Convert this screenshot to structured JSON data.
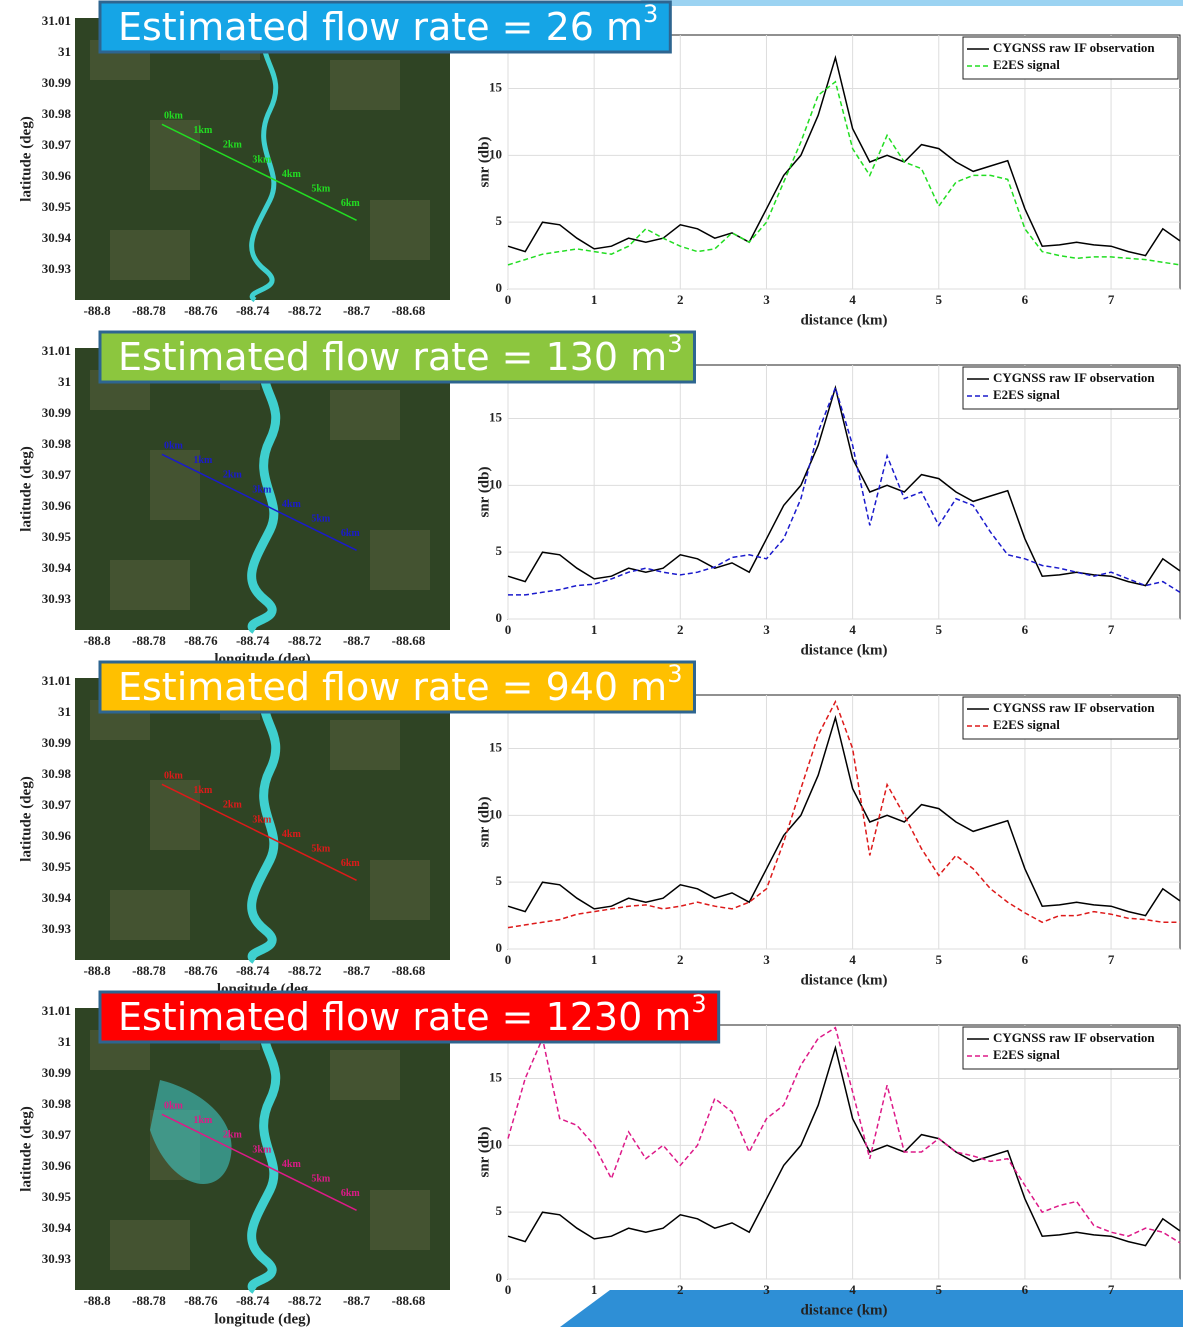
{
  "chart_data": [
    {
      "type": "line",
      "xlabel": "distance (km)",
      "ylabel": "snr (db)",
      "xlim": [
        0,
        7.8
      ],
      "ylim": [
        0,
        19
      ],
      "xticks": [
        0,
        1,
        2,
        3,
        4,
        5,
        6,
        7
      ],
      "yticks": [
        0,
        5,
        10,
        15
      ],
      "grid": true,
      "legend": "upper right",
      "x": [
        0,
        0.2,
        0.4,
        0.6,
        0.8,
        1,
        1.2,
        1.4,
        1.6,
        1.8,
        2,
        2.2,
        2.4,
        2.6,
        2.8,
        3,
        3.2,
        3.4,
        3.6,
        3.8,
        4,
        4.2,
        4.4,
        4.6,
        4.8,
        5,
        5.2,
        5.4,
        5.6,
        5.8,
        6,
        6.2,
        6.4,
        6.6,
        6.8,
        7,
        7.2,
        7.4,
        7.6,
        7.8
      ],
      "series": [
        {
          "name": "CYGNSS raw IF observation",
          "color": "#000000",
          "linestyle": "solid",
          "values": [
            3.2,
            2.8,
            5.0,
            4.8,
            3.8,
            3.0,
            3.2,
            3.8,
            3.5,
            3.8,
            4.8,
            4.5,
            3.8,
            4.2,
            3.5,
            6.0,
            8.5,
            10.0,
            13.0,
            17.3,
            12.0,
            9.5,
            10.0,
            9.5,
            10.8,
            10.5,
            9.5,
            8.8,
            9.2,
            9.6,
            6.0,
            3.2,
            3.3,
            3.5,
            3.3,
            3.2,
            2.8,
            2.5,
            4.5,
            3.6
          ]
        },
        {
          "name": "E2ES signal",
          "color": "#22dd22",
          "linestyle": "dashed",
          "values": [
            1.8,
            2.2,
            2.6,
            2.8,
            3.0,
            2.8,
            2.6,
            3.2,
            4.5,
            3.8,
            3.2,
            2.8,
            3.0,
            4.2,
            3.5,
            5.0,
            8.0,
            11.0,
            14.5,
            15.5,
            10.5,
            8.5,
            11.5,
            9.5,
            9.0,
            6.2,
            8.0,
            8.5,
            8.5,
            8.2,
            4.5,
            2.8,
            2.5,
            2.3,
            2.4,
            2.4,
            2.3,
            2.2,
            2.0,
            1.8
          ]
        }
      ]
    },
    {
      "type": "line",
      "xlabel": "distance (km)",
      "ylabel": "snr (db)",
      "xlim": [
        0,
        7.8
      ],
      "ylim": [
        0,
        19
      ],
      "xticks": [
        0,
        1,
        2,
        3,
        4,
        5,
        6,
        7
      ],
      "yticks": [
        0,
        5,
        10,
        15
      ],
      "grid": true,
      "legend": "upper right",
      "x": [
        0,
        0.2,
        0.4,
        0.6,
        0.8,
        1,
        1.2,
        1.4,
        1.6,
        1.8,
        2,
        2.2,
        2.4,
        2.6,
        2.8,
        3,
        3.2,
        3.4,
        3.6,
        3.8,
        4,
        4.2,
        4.4,
        4.6,
        4.8,
        5,
        5.2,
        5.4,
        5.6,
        5.8,
        6,
        6.2,
        6.4,
        6.6,
        6.8,
        7,
        7.2,
        7.4,
        7.6,
        7.8
      ],
      "series": [
        {
          "name": "CYGNSS raw IF observation",
          "color": "#000000",
          "linestyle": "solid",
          "values": [
            3.2,
            2.8,
            5.0,
            4.8,
            3.8,
            3.0,
            3.2,
            3.8,
            3.5,
            3.8,
            4.8,
            4.5,
            3.8,
            4.2,
            3.5,
            6.0,
            8.5,
            10.0,
            13.0,
            17.3,
            12.0,
            9.5,
            10.0,
            9.5,
            10.8,
            10.5,
            9.5,
            8.8,
            9.2,
            9.6,
            6.0,
            3.2,
            3.3,
            3.5,
            3.3,
            3.2,
            2.8,
            2.5,
            4.5,
            3.6
          ]
        },
        {
          "name": "E2ES signal",
          "color": "#1a1acc",
          "linestyle": "dashed",
          "values": [
            1.8,
            1.8,
            2.0,
            2.2,
            2.5,
            2.6,
            3.0,
            3.5,
            3.8,
            3.5,
            3.3,
            3.5,
            3.9,
            4.6,
            4.8,
            4.5,
            6.0,
            9.0,
            14.0,
            17.3,
            13.0,
            7.0,
            12.2,
            9.0,
            9.5,
            7.0,
            9.0,
            8.5,
            6.5,
            4.8,
            4.5,
            4.0,
            3.8,
            3.5,
            3.2,
            3.5,
            3.0,
            2.5,
            2.8,
            2.0
          ]
        }
      ]
    },
    {
      "type": "line",
      "xlabel": "distance (km)",
      "ylabel": "snr (db)",
      "xlim": [
        0,
        7.8
      ],
      "ylim": [
        0,
        19
      ],
      "xticks": [
        0,
        1,
        2,
        3,
        4,
        5,
        6,
        7
      ],
      "yticks": [
        0,
        5,
        10,
        15
      ],
      "grid": true,
      "legend": "upper right",
      "x": [
        0,
        0.2,
        0.4,
        0.6,
        0.8,
        1,
        1.2,
        1.4,
        1.6,
        1.8,
        2,
        2.2,
        2.4,
        2.6,
        2.8,
        3,
        3.2,
        3.4,
        3.6,
        3.8,
        4,
        4.2,
        4.4,
        4.6,
        4.8,
        5,
        5.2,
        5.4,
        5.6,
        5.8,
        6,
        6.2,
        6.4,
        6.6,
        6.8,
        7,
        7.2,
        7.4,
        7.6,
        7.8
      ],
      "series": [
        {
          "name": "CYGNSS raw IF observation",
          "color": "#000000",
          "linestyle": "solid",
          "values": [
            3.2,
            2.8,
            5.0,
            4.8,
            3.8,
            3.0,
            3.2,
            3.8,
            3.5,
            3.8,
            4.8,
            4.5,
            3.8,
            4.2,
            3.5,
            6.0,
            8.5,
            10.0,
            13.0,
            17.3,
            12.0,
            9.5,
            10.0,
            9.5,
            10.8,
            10.5,
            9.5,
            8.8,
            9.2,
            9.6,
            6.0,
            3.2,
            3.3,
            3.5,
            3.3,
            3.2,
            2.8,
            2.5,
            4.5,
            3.6
          ]
        },
        {
          "name": "E2ES signal",
          "color": "#dd1a1a",
          "linestyle": "dashed",
          "values": [
            1.6,
            1.8,
            2.0,
            2.2,
            2.6,
            2.8,
            3.0,
            3.2,
            3.3,
            3.0,
            3.2,
            3.5,
            3.2,
            3.0,
            3.5,
            4.5,
            8.0,
            12.0,
            16.0,
            18.5,
            15.0,
            7.0,
            12.3,
            10.0,
            7.5,
            5.5,
            7.0,
            6.0,
            4.5,
            3.5,
            2.7,
            2.0,
            2.5,
            2.5,
            2.8,
            2.6,
            2.3,
            2.2,
            2.0,
            2.0
          ]
        }
      ]
    },
    {
      "type": "line",
      "xlabel": "distance (km)",
      "ylabel": "snr (db)",
      "xlim": [
        0,
        7.8
      ],
      "ylim": [
        0,
        19
      ],
      "xticks": [
        0,
        1,
        2,
        3,
        4,
        5,
        6,
        7
      ],
      "yticks": [
        0,
        5,
        10,
        15
      ],
      "grid": true,
      "legend": "upper right",
      "x": [
        0,
        0.2,
        0.4,
        0.6,
        0.8,
        1,
        1.2,
        1.4,
        1.6,
        1.8,
        2,
        2.2,
        2.4,
        2.6,
        2.8,
        3,
        3.2,
        3.4,
        3.6,
        3.8,
        4,
        4.2,
        4.4,
        4.6,
        4.8,
        5,
        5.2,
        5.4,
        5.6,
        5.8,
        6,
        6.2,
        6.4,
        6.6,
        6.8,
        7,
        7.2,
        7.4,
        7.6,
        7.8
      ],
      "series": [
        {
          "name": "CYGNSS raw IF observation",
          "color": "#000000",
          "linestyle": "solid",
          "values": [
            3.2,
            2.8,
            5.0,
            4.8,
            3.8,
            3.0,
            3.2,
            3.8,
            3.5,
            3.8,
            4.8,
            4.5,
            3.8,
            4.2,
            3.5,
            6.0,
            8.5,
            10.0,
            13.0,
            17.3,
            12.0,
            9.5,
            10.0,
            9.5,
            10.8,
            10.5,
            9.5,
            8.8,
            9.2,
            9.6,
            6.0,
            3.2,
            3.3,
            3.5,
            3.3,
            3.2,
            2.8,
            2.5,
            4.5,
            3.6
          ]
        },
        {
          "name": "E2ES signal",
          "color": "#dd1a88",
          "linestyle": "dashed",
          "values": [
            10.5,
            15.0,
            18.0,
            12.0,
            11.5,
            10.0,
            7.5,
            11.0,
            9.0,
            10.0,
            8.5,
            10.0,
            13.5,
            12.5,
            9.5,
            12.0,
            13.0,
            16.0,
            18.0,
            18.8,
            14.0,
            9.0,
            14.5,
            9.5,
            9.5,
            10.5,
            9.5,
            9.2,
            8.8,
            9.0,
            7.0,
            5.0,
            5.5,
            5.8,
            4.0,
            3.5,
            3.2,
            3.8,
            3.5,
            2.7
          ]
        }
      ]
    }
  ],
  "maps": [
    {
      "ylabel": "latitude (deg)",
      "xlim": [
        -88.8085,
        -88.664
      ],
      "ylim": [
        30.9203,
        31.0113
      ],
      "xticks": [
        -88.8,
        -88.78,
        -88.76,
        -88.74,
        -88.72,
        -88.7,
        -88.68
      ],
      "yticks": [
        31.01,
        31,
        30.99,
        30.98,
        30.97,
        30.96,
        30.95,
        30.94,
        30.93
      ],
      "track_labels": [
        "0km",
        "1km",
        "2km",
        "3km",
        "4km",
        "5km",
        "6km"
      ]
    },
    {
      "ylabel": "latitude (deg)",
      "xlabel": "longitude (deg)",
      "xlim": [
        -88.8085,
        -88.664
      ],
      "ylim": [
        30.9203,
        31.0113
      ],
      "xticks": [
        -88.8,
        -88.78,
        -88.76,
        -88.74,
        -88.72,
        -88.7,
        -88.68
      ],
      "yticks": [
        31.01,
        31,
        30.99,
        30.98,
        30.97,
        30.96,
        30.95,
        30.94,
        30.93
      ],
      "track_labels": [
        "0km",
        "1km",
        "2km",
        "3km",
        "4km",
        "5km",
        "6km"
      ]
    },
    {
      "ylabel": "latitude (deg)",
      "xlabel": "longitude (deg",
      "xlim": [
        -88.8085,
        -88.664
      ],
      "ylim": [
        30.9203,
        31.0113
      ],
      "xticks": [
        -88.8,
        -88.78,
        -88.76,
        -88.74,
        -88.72,
        -88.7,
        -88.68
      ],
      "yticks": [
        31.01,
        31,
        30.99,
        30.98,
        30.97,
        30.96,
        30.95,
        30.94,
        30.93
      ],
      "track_labels": [
        "0km",
        "1km",
        "2km",
        "3km",
        "4km",
        "5km",
        "6km"
      ]
    },
    {
      "ylabel": "latitude (deg)",
      "xlabel": "longitude (deg)",
      "xlim": [
        -88.8085,
        -88.664
      ],
      "ylim": [
        30.9203,
        31.0113
      ],
      "xticks": [
        -88.8,
        -88.78,
        -88.76,
        -88.74,
        -88.72,
        -88.7,
        -88.68
      ],
      "yticks": [
        31.01,
        31,
        30.99,
        30.98,
        30.97,
        30.96,
        30.95,
        30.94,
        30.93
      ],
      "track_labels": [
        "0km",
        "1km",
        "2km",
        "3km",
        "4km",
        "5km",
        "6km"
      ]
    }
  ],
  "banners": [
    {
      "text": "Estimated flow rate = 26 m",
      "sup": "3",
      "color": "#15a5e6"
    },
    {
      "text": "Estimated flow rate = 130 m",
      "sup": "3",
      "color": "#8cc63e"
    },
    {
      "text": "Estimated flow rate = 940 m",
      "sup": "3",
      "color": "#ffc000"
    },
    {
      "text": "Estimated flow rate = 1230 m",
      "sup": "3",
      "color": "#ff0000"
    }
  ]
}
